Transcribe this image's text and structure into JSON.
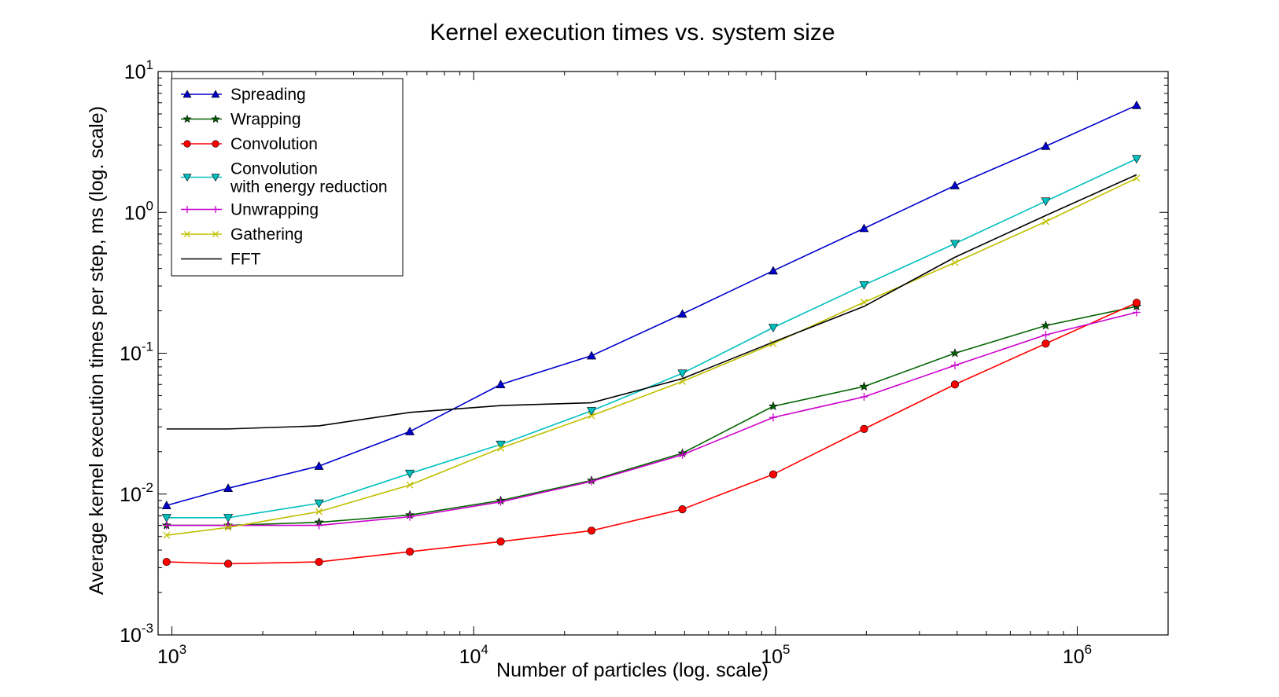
{
  "chart_data": {
    "type": "line",
    "title": "Kernel execution times vs. system size",
    "xlabel": "Number of particles (log. scale)",
    "ylabel": "Average kernel execution times per step, ms (log. scale)",
    "x_scale": "log",
    "y_scale": "log",
    "xlim": [
      900,
      2000000
    ],
    "ylim": [
      0.001,
      10
    ],
    "x_ticks": [
      {
        "value": 1000,
        "base": "10",
        "exp": "3"
      },
      {
        "value": 10000,
        "base": "10",
        "exp": "4"
      },
      {
        "value": 100000,
        "base": "10",
        "exp": "5"
      },
      {
        "value": 1000000,
        "base": "10",
        "exp": "6"
      }
    ],
    "y_ticks": [
      {
        "value": 0.001,
        "base": "10",
        "exp": "-3"
      },
      {
        "value": 0.01,
        "base": "10",
        "exp": "-2"
      },
      {
        "value": 0.1,
        "base": "10",
        "exp": "-1"
      },
      {
        "value": 1,
        "base": "10",
        "exp": "0"
      },
      {
        "value": 10,
        "base": "10",
        "exp": "1"
      }
    ],
    "grid": false,
    "legend_position": "top-left",
    "x": [
      960,
      1536,
      3072,
      6144,
      12288,
      24576,
      49152,
      98304,
      196608,
      393216,
      786432,
      1572864
    ],
    "series": [
      {
        "name": "Spreading",
        "color": "#0000cc",
        "marker": "triangle-up",
        "values": [
          0.0083,
          0.011,
          0.0158,
          0.0278,
          0.06,
          0.096,
          0.19,
          0.385,
          0.77,
          1.55,
          2.95,
          5.75
        ]
      },
      {
        "name": "Wrapping",
        "color": "#006400",
        "marker": "star",
        "values": [
          0.006,
          0.006,
          0.0063,
          0.0071,
          0.009,
          0.0125,
          0.0195,
          0.042,
          0.058,
          0.1,
          0.157,
          0.215
        ]
      },
      {
        "name": "Convolution",
        "color": "#ff0000",
        "marker": "circle",
        "values": [
          0.0033,
          0.0032,
          0.0033,
          0.0039,
          0.0046,
          0.0055,
          0.0078,
          0.0138,
          0.029,
          0.06,
          0.117,
          0.228
        ]
      },
      {
        "name": "Convolution\nwith energy reduction",
        "color": "#00bfbf",
        "marker": "triangle-down",
        "values": [
          0.0068,
          0.0068,
          0.0086,
          0.014,
          0.0225,
          0.039,
          0.072,
          0.152,
          0.305,
          0.6,
          1.2,
          2.4
        ]
      },
      {
        "name": "Unwrapping",
        "color": "#cc00cc",
        "marker": "plus",
        "values": [
          0.006,
          0.006,
          0.006,
          0.0069,
          0.0088,
          0.0123,
          0.019,
          0.035,
          0.049,
          0.082,
          0.135,
          0.195
        ]
      },
      {
        "name": "Gathering",
        "color": "#bfbf00",
        "marker": "x",
        "values": [
          0.0051,
          0.0058,
          0.0075,
          0.0116,
          0.0212,
          0.036,
          0.063,
          0.117,
          0.23,
          0.44,
          0.86,
          1.75
        ]
      },
      {
        "name": "FFT",
        "color": "#000000",
        "marker": "none",
        "values": [
          0.029,
          0.029,
          0.0305,
          0.038,
          0.0425,
          0.0445,
          0.066,
          0.12,
          0.215,
          0.48,
          0.95,
          1.85
        ]
      }
    ]
  }
}
